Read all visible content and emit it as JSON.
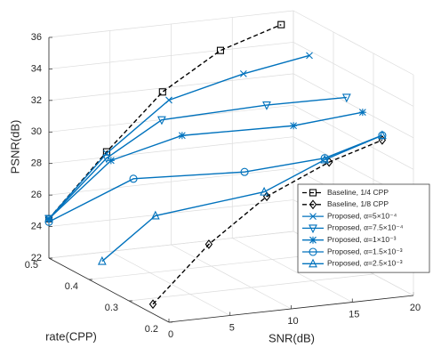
{
  "chart_data": {
    "type": "line3d",
    "xlabel": "SNR(dB)",
    "ylabel": "rate(CPP)",
    "zlabel": "PSNR(dB)",
    "xlim": [
      0,
      20
    ],
    "xticks": [
      0,
      5,
      10,
      15,
      20
    ],
    "ylim": [
      0.2,
      0.5
    ],
    "yticks": [
      0.2,
      0.3,
      0.4,
      0.5
    ],
    "zlim": [
      22,
      36
    ],
    "zticks": [
      22,
      24,
      26,
      28,
      30,
      32,
      34,
      36
    ],
    "grid": true,
    "legend": "east",
    "series": [
      {
        "name": "Baseline, 1/4 CPP",
        "color": "#000000",
        "linestyle": "dashed",
        "marker": "square",
        "x": [
          0,
          4,
          9,
          14,
          19
        ],
        "y": [
          0.5,
          0.478,
          0.491,
          0.499,
          0.5
        ],
        "z": [
          24.5,
          28.7,
          31.9,
          34.0,
          35.2
        ]
      },
      {
        "name": "Baseline, 1/8 CPP",
        "color": "#000000",
        "linestyle": "dashed",
        "marker": "diamond",
        "x": [
          0,
          5,
          10,
          15,
          20
        ],
        "y": [
          0.24,
          0.253,
          0.261,
          0.258,
          0.278
        ],
        "z": [
          22.6,
          25.8,
          28.3,
          30.1,
          30.8
        ]
      },
      {
        "name": "Proposed, α=5×10⁻⁴",
        "color": "#0072bd",
        "linestyle": "solid",
        "marker": "x",
        "x": [
          0,
          4,
          9,
          15,
          20
        ],
        "y": [
          0.5,
          0.478,
          0.475,
          0.472,
          0.46
        ],
        "z": [
          24.5,
          28.6,
          31.6,
          32.8,
          33.7
        ]
      },
      {
        "name": "Proposed, α=7.5×10⁻⁴",
        "color": "#0072bd",
        "linestyle": "solid",
        "marker": "triangle-down",
        "x": [
          0,
          4,
          9,
          15,
          20
        ],
        "y": [
          0.5,
          0.478,
          0.493,
          0.414,
          0.367
        ],
        "z": [
          24.5,
          28.3,
          30.1,
          31.6,
          32.3
        ]
      },
      {
        "name": "Proposed, α=1×10⁻³",
        "color": "#0072bd",
        "linestyle": "solid",
        "marker": "asterisk",
        "x": [
          0,
          4,
          9,
          15,
          20
        ],
        "y": [
          0.5,
          0.467,
          0.442,
          0.347,
          0.327
        ],
        "z": [
          24.5,
          28.3,
          29.8,
          31.2,
          31.9
        ]
      },
      {
        "name": "Proposed, α=1.5×10⁻³",
        "color": "#0072bd",
        "linestyle": "solid",
        "marker": "circle",
        "x": [
          0,
          4,
          9,
          15,
          20
        ],
        "y": [
          0.5,
          0.411,
          0.286,
          0.269,
          0.278
        ],
        "z": [
          24.3,
          27.9,
          29.6,
          30.2,
          31.1
        ]
      },
      {
        "name": "Proposed, α=2.5×10⁻³",
        "color": "#0072bd",
        "linestyle": "solid",
        "marker": "triangle",
        "x": [
          0,
          4,
          9,
          15,
          20
        ],
        "y": [
          0.367,
          0.356,
          0.237,
          0.269,
          0.278
        ],
        "z": [
          23.6,
          26.3,
          29.0,
          30.1,
          31.1
        ]
      }
    ]
  }
}
